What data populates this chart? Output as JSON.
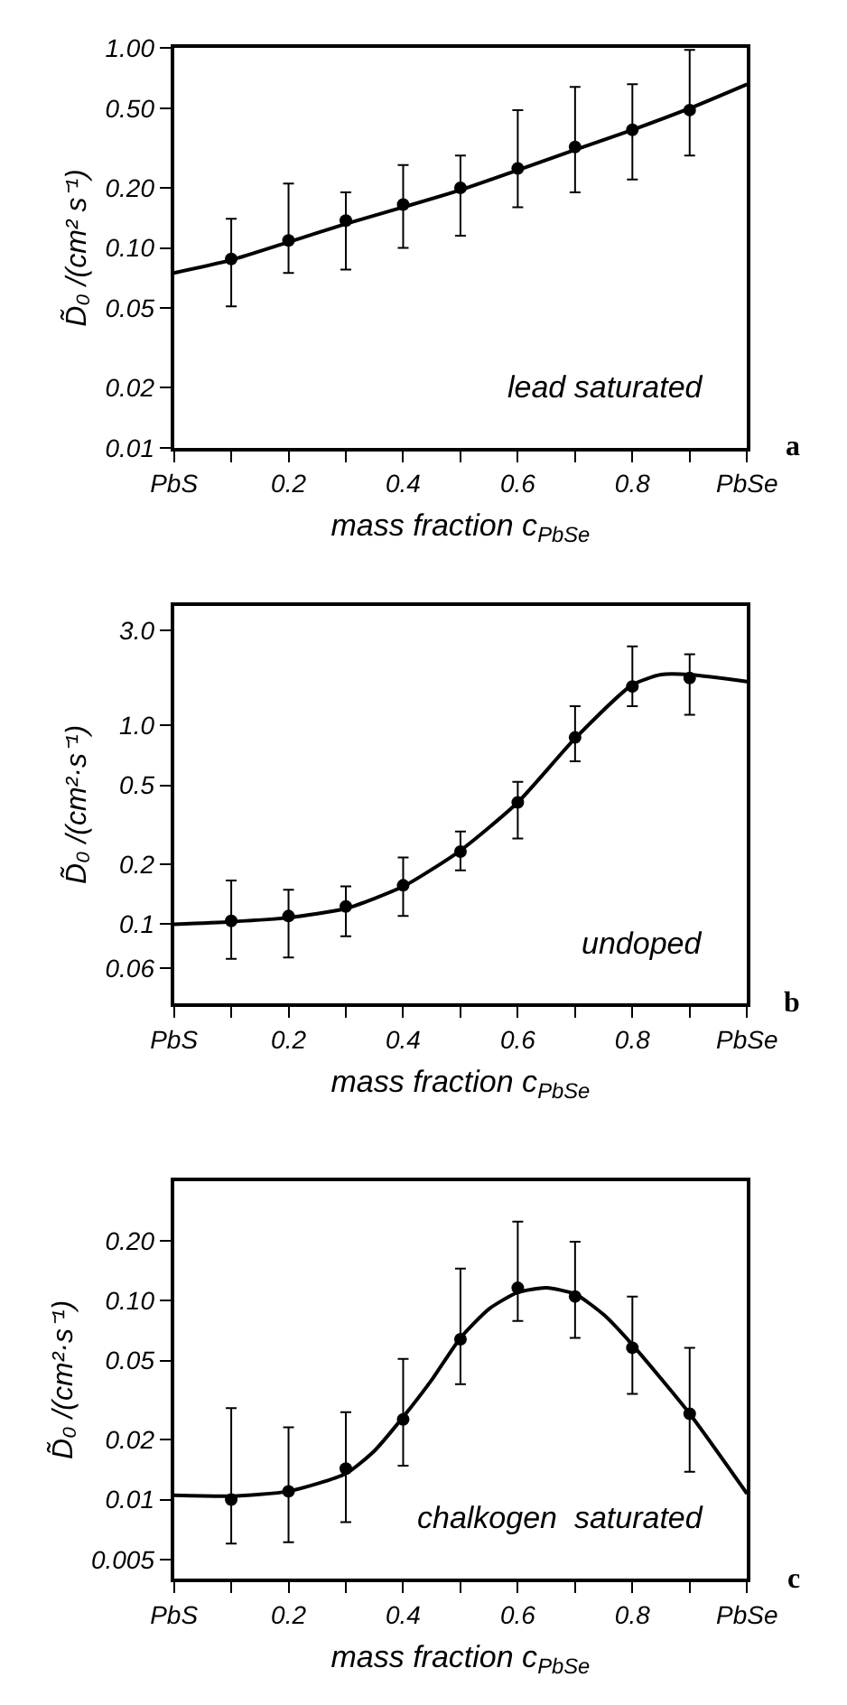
{
  "chart_data": [
    {
      "type": "scatter",
      "xlabel": "mass fraction c$_{PbSe}$",
      "ylabel": "D̃₀ /(cm² s⁻¹)",
      "annotations": [
        "lead saturated",
        "a"
      ],
      "xlim": [
        0,
        1
      ],
      "xticks": [
        {
          "value": 0,
          "label": "PbS"
        },
        {
          "value": 0.1,
          "label": null
        },
        0.2,
        {
          "value": 0.3,
          "label": null
        },
        0.4,
        {
          "value": 0.5,
          "label": null
        },
        0.6,
        {
          "value": 0.7,
          "label": null
        },
        0.8,
        {
          "value": 0.9,
          "label": null
        },
        {
          "value": 1,
          "label": "PbSe"
        }
      ],
      "ylim": [
        0.01,
        1
      ],
      "yticks": [
        0.01,
        0.02,
        0.05,
        {
          "value": 0.1,
          "label": "0.10"
        },
        {
          "value": 0.2,
          "label": "0.20"
        },
        {
          "value": 0.5,
          "label": "0.50"
        },
        {
          "value": 1,
          "label": "1.00"
        }
      ],
      "log": "y",
      "marker": "circle",
      "series": [
        {
          "color": "#000000",
          "x": [
            0.1,
            0.2,
            0.3,
            0.4,
            0.5,
            0.6,
            0.7,
            0.8,
            0.9
          ],
          "values": [
            0.088,
            0.109,
            0.137,
            0.165,
            0.2,
            0.25,
            0.32,
            0.39,
            0.49
          ],
          "errors": [
            [
              0.051,
              0.14
            ],
            [
              0.075,
              0.21
            ],
            [
              0.078,
              0.19
            ],
            [
              0.1,
              0.26
            ],
            [
              0.115,
              0.29
            ],
            [
              0.16,
              0.49
            ],
            [
              0.19,
              0.64
            ],
            [
              0.22,
              0.66
            ],
            [
              0.29,
              0.98
            ]
          ]
        },
        {
          "type": "line",
          "marker": "none",
          "color": "#000000",
          "x": [
            0,
            0.1,
            0.2,
            0.3,
            0.4,
            0.5,
            0.6,
            0.7,
            0.8,
            0.9,
            1
          ],
          "values": [
            0.075,
            0.087,
            0.107,
            0.132,
            0.16,
            0.195,
            0.245,
            0.31,
            0.39,
            0.5,
            0.66
          ]
        }
      ]
    },
    {
      "type": "scatter",
      "xlabel": "mass fraction c$_{PbSe}$",
      "ylabel": "D̃₀ /(cm²·s⁻¹)",
      "annotations": [
        "undoped",
        "b"
      ],
      "xlim": [
        0,
        1
      ],
      "xticks": [
        {
          "value": 0,
          "label": "PbS"
        },
        {
          "value": 0.1,
          "label": null
        },
        0.2,
        {
          "value": 0.3,
          "label": null
        },
        0.4,
        {
          "value": 0.5,
          "label": null
        },
        0.6,
        {
          "value": 0.7,
          "label": null
        },
        0.8,
        {
          "value": 0.9,
          "label": null
        },
        {
          "value": 1,
          "label": "PbSe"
        }
      ],
      "ylim": [
        0.04,
        4
      ],
      "yticks": [
        0.06,
        0.1,
        0.2,
        0.5,
        {
          "value": 1,
          "label": "1.0"
        },
        {
          "value": 3,
          "label": "3.0"
        }
      ],
      "log": "y",
      "marker": "circle",
      "series": [
        {
          "color": "#000000",
          "x": [
            0.1,
            0.2,
            0.3,
            0.4,
            0.5,
            0.6,
            0.7,
            0.8,
            0.9
          ],
          "values": [
            0.104,
            0.11,
            0.123,
            0.157,
            0.232,
            0.41,
            0.87,
            1.57,
            1.73
          ],
          "errors": [
            [
              0.067,
              0.166
            ],
            [
              0.068,
              0.149
            ],
            [
              0.087,
              0.155
            ],
            [
              0.11,
              0.217
            ],
            [
              0.187,
              0.293
            ],
            [
              0.27,
              0.52
            ],
            [
              0.66,
              1.25
            ],
            [
              1.25,
              2.5
            ],
            [
              1.13,
              2.28
            ]
          ]
        },
        {
          "type": "line",
          "marker": "none",
          "color": "#000000",
          "x": [
            0,
            0.1,
            0.2,
            0.3,
            0.4,
            0.5,
            0.6,
            0.7,
            0.8,
            0.85,
            0.9,
            1
          ],
          "values": [
            0.1,
            0.103,
            0.108,
            0.12,
            0.155,
            0.235,
            0.41,
            0.86,
            1.6,
            1.8,
            1.8,
            1.66
          ]
        }
      ]
    },
    {
      "type": "scatter",
      "xlabel": "mass fraction c$_{PbSe}$",
      "ylabel": "D̃₀ /(cm²·s⁻¹)",
      "annotations": [
        "chalkogen  saturated",
        "c"
      ],
      "xlim": [
        0,
        1
      ],
      "xticks": [
        {
          "value": 0,
          "label": "PbS"
        },
        {
          "value": 0.1,
          "label": null
        },
        0.2,
        {
          "value": 0.3,
          "label": null
        },
        0.4,
        {
          "value": 0.5,
          "label": null
        },
        0.6,
        {
          "value": 0.7,
          "label": null
        },
        0.8,
        {
          "value": 0.9,
          "label": null
        },
        {
          "value": 1,
          "label": "PbSe"
        }
      ],
      "ylim": [
        0.004,
        0.4
      ],
      "yticks": [
        0.005,
        0.01,
        0.02,
        0.05,
        {
          "value": 0.1,
          "label": "0.10"
        },
        {
          "value": 0.2,
          "label": "0.20"
        }
      ],
      "log": "y",
      "marker": "circle",
      "series": [
        {
          "color": "#000000",
          "x": [
            0.1,
            0.2,
            0.3,
            0.4,
            0.5,
            0.6,
            0.7,
            0.8,
            0.9
          ],
          "values": [
            0.01,
            0.011,
            0.0143,
            0.0253,
            0.064,
            0.116,
            0.105,
            0.058,
            0.027
          ],
          "errors": [
            [
              0.006,
              0.0288
            ],
            [
              0.0061,
              0.0231
            ],
            [
              0.0077,
              0.0275
            ],
            [
              0.0148,
              0.051
            ],
            [
              0.038,
              0.145
            ],
            [
              0.079,
              0.25
            ],
            [
              0.065,
              0.198
            ],
            [
              0.034,
              0.105
            ],
            [
              0.0138,
              0.058
            ]
          ]
        },
        {
          "type": "line",
          "marker": "none",
          "color": "#000000",
          "x": [
            0,
            0.1,
            0.2,
            0.3,
            0.35,
            0.4,
            0.45,
            0.5,
            0.55,
            0.6,
            0.65,
            0.7,
            0.75,
            0.8,
            0.9,
            1
          ],
          "values": [
            0.0105,
            0.0104,
            0.011,
            0.0135,
            0.0176,
            0.026,
            0.04,
            0.065,
            0.091,
            0.11,
            0.116,
            0.108,
            0.085,
            0.06,
            0.027,
            0.0107
          ]
        }
      ]
    }
  ]
}
